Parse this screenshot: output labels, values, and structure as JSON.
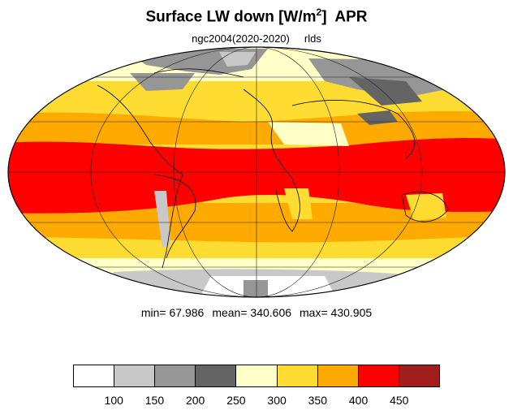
{
  "title": {
    "main": "Surface LW down [W/m",
    "sup": "2",
    "close": "]",
    "month": "APR"
  },
  "subtitle": {
    "run": "ngc2004(2020-2020)",
    "var": "rlds"
  },
  "stats": {
    "min_label": "min=",
    "min": "67.986",
    "mean_label": "mean=",
    "mean": "340.606",
    "max_label": "max=",
    "max": "430.905"
  },
  "colorbar": {
    "colors": [
      "#ffffff",
      "#c8c8c8",
      "#969696",
      "#646464",
      "#ffffc8",
      "#ffdc32",
      "#ffaa00",
      "#ff0000",
      "#a01e1e"
    ],
    "labels": [
      "100",
      "150",
      "200",
      "250",
      "300",
      "350",
      "400",
      "450"
    ]
  }
}
